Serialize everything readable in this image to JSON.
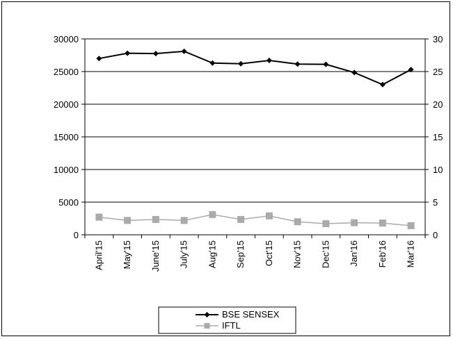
{
  "chart_data": {
    "type": "line",
    "title": "",
    "xlabel": "",
    "ylabel": "",
    "categories": [
      "April'15",
      "May'15",
      "June'15",
      "July'15",
      "Aug'15",
      "Sep'15",
      "Oct'15",
      "Nov'15",
      "Dec'15",
      "Jan'16",
      "Feb'16",
      "Mar'16"
    ],
    "ylim": [
      0,
      30000
    ],
    "y_ticks": [
      "0",
      "5000",
      "10000",
      "15000",
      "20000",
      "25000",
      "30000"
    ],
    "y2lim": [
      0,
      30
    ],
    "y2_ticks": [
      "0",
      "5",
      "10",
      "15",
      "20",
      "25",
      "30"
    ],
    "grid": true,
    "legend_position": "bottom",
    "series": [
      {
        "name": "BSE SENSEX",
        "axis": "left",
        "color": "#000000",
        "marker": "diamond",
        "values": [
          27000,
          27800,
          27750,
          28100,
          26300,
          26200,
          26700,
          26150,
          26100,
          24850,
          23000,
          25300
        ]
      },
      {
        "name": "IFTL",
        "axis": "right",
        "color": "#aaaaaa",
        "marker": "square",
        "values": [
          2.7,
          2.2,
          2.35,
          2.2,
          3.1,
          2.35,
          2.9,
          2.0,
          1.7,
          1.85,
          1.8,
          1.4
        ]
      }
    ]
  }
}
